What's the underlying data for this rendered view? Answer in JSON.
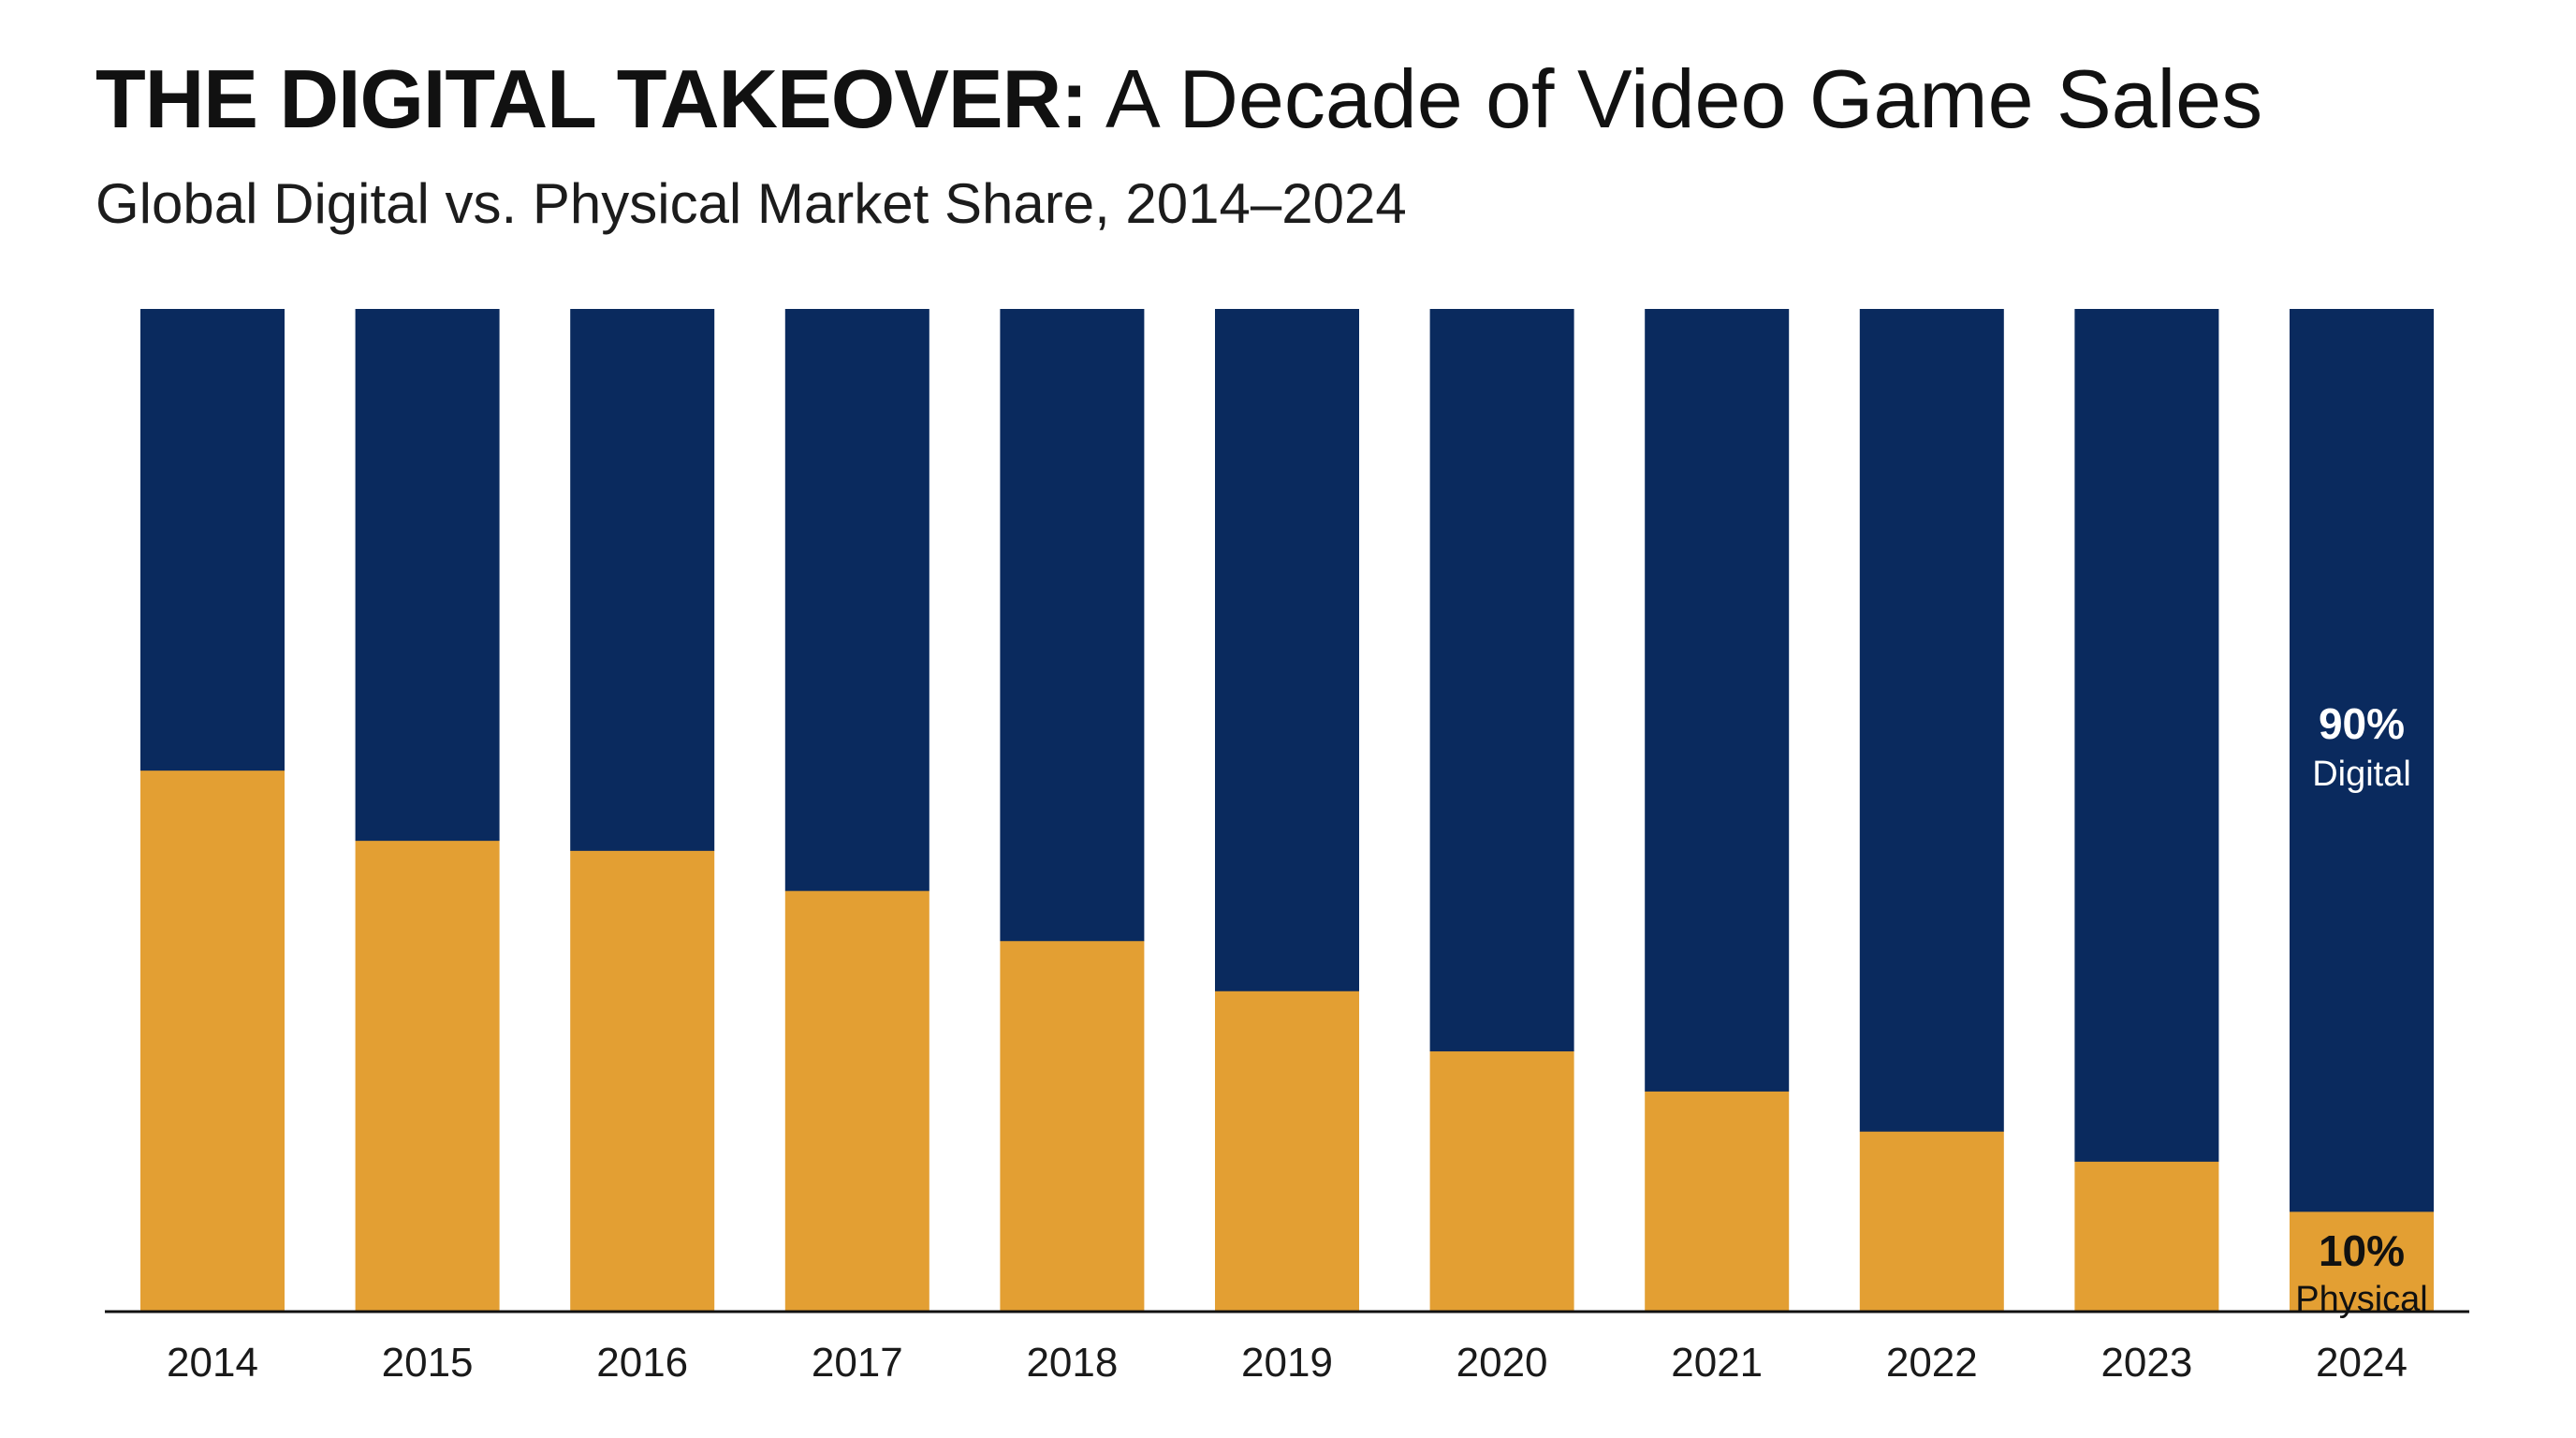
{
  "header": {
    "title_strong": "THE DIGITAL TAKEOVER:",
    "title_rest": " A Decade of Video Game Sales",
    "subtitle": "Global Digital vs. Physical Market Share, 2014–2024"
  },
  "chart_data": {
    "type": "bar",
    "stacked": true,
    "normalized_to": 100,
    "categories": [
      "2014",
      "2015",
      "2016",
      "2017",
      "2018",
      "2019",
      "2020",
      "2021",
      "2022",
      "2023",
      "2024"
    ],
    "series": [
      {
        "name": "Physical",
        "color": "#E39F33",
        "values": [
          54,
          47,
          46,
          42,
          37,
          32,
          26,
          22,
          18,
          15,
          10
        ]
      },
      {
        "name": "Digital",
        "color": "#0A2A5E",
        "values": [
          46,
          53,
          54,
          58,
          63,
          68,
          74,
          78,
          82,
          85,
          90
        ]
      }
    ],
    "ylim": [
      0,
      100
    ],
    "xlabel": "",
    "ylabel": "",
    "grid": false,
    "legend": "none",
    "annotations": [
      {
        "category": "2024",
        "series": "Digital",
        "value_label": "90%",
        "name_label": "Digital",
        "text_color": "#ffffff"
      },
      {
        "category": "2024",
        "series": "Physical",
        "value_label": "10%",
        "name_label": "Physical",
        "text_color": "#111111"
      }
    ]
  }
}
